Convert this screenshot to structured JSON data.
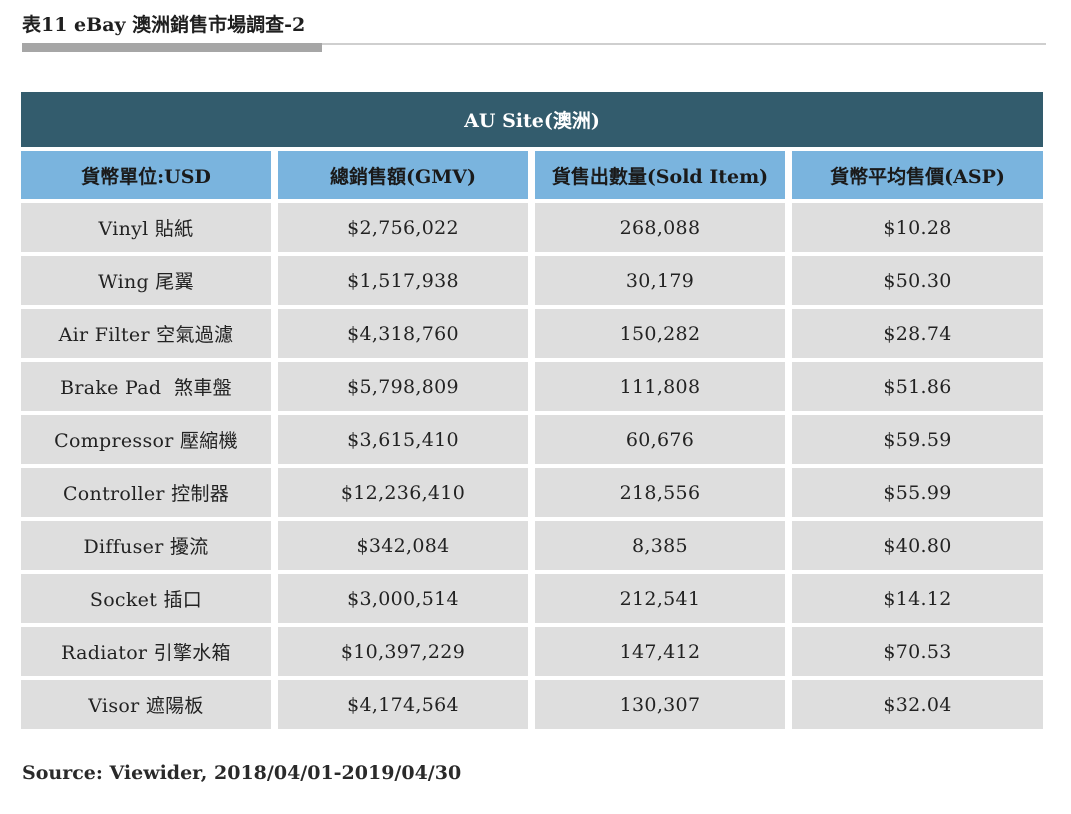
{
  "title": "表11 eBay 澳洲銷售市場調查-2",
  "table": {
    "site_header": "AU Site(澳洲)",
    "columns": [
      "貨幣單位:USD",
      "總銷售額(GMV)",
      "貨售出數量(Sold Item)",
      "貨幣平均售價(ASP)"
    ],
    "rows": [
      [
        "Vinyl 貼紙",
        "$2,756,022",
        "268,088",
        "$10.28"
      ],
      [
        "Wing 尾翼",
        "$1,517,938",
        "30,179",
        "$50.30"
      ],
      [
        "Air Filter 空氣過濾",
        "$4,318,760",
        "150,282",
        "$28.74"
      ],
      [
        "Brake Pad  煞車盤",
        "$5,798,809",
        "111,808",
        "$51.86"
      ],
      [
        "Compressor 壓縮機",
        "$3,615,410",
        "60,676",
        "$59.59"
      ],
      [
        "Controller 控制器",
        "$12,236,410",
        "218,556",
        "$55.99"
      ],
      [
        "Diffuser 擾流",
        "$342,084",
        "8,385",
        "$40.80"
      ],
      [
        "Socket 插口",
        "$3,000,514",
        "212,541",
        "$14.12"
      ],
      [
        "Radiator 引擎水箱",
        "$10,397,229",
        "147,412",
        "$70.53"
      ],
      [
        "Visor 遮陽板",
        "$4,174,564",
        "130,307",
        "$32.04"
      ]
    ]
  },
  "source": "Source: Viewider, 2018/04/01-2019/04/30",
  "colors": {
    "site_header_bg": "#335c6d",
    "column_header_bg": "#7ab4de",
    "row_bg": "#dedede"
  }
}
